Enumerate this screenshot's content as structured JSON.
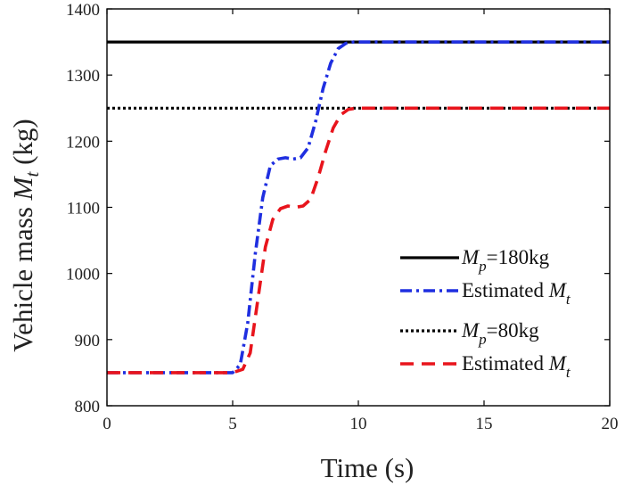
{
  "chart_data": {
    "type": "line",
    "xlabel": "Time (s)",
    "ylabel": "Vehicle mass M_t (kg)",
    "xlim": [
      0,
      20
    ],
    "ylim": [
      800,
      1400
    ],
    "xticks": [
      0,
      5,
      10,
      15,
      20
    ],
    "yticks": [
      800,
      900,
      1000,
      1100,
      1200,
      1300,
      1400
    ],
    "grid": false,
    "legend_position": "bottom-right",
    "series": [
      {
        "name": "M_p=180kg",
        "style": "solid",
        "color": "#000000",
        "x": [
          0,
          20
        ],
        "y": [
          1350,
          1350
        ]
      },
      {
        "name": "Estimated M_t",
        "style": "dash-dot",
        "color": "#1f2fe0",
        "x": [
          0,
          2,
          4,
          5,
          5.3,
          5.6,
          5.9,
          6.2,
          6.5,
          6.8,
          7.1,
          7.4,
          7.7,
          8.0,
          8.3,
          8.6,
          8.9,
          9.2,
          9.5,
          9.8,
          10,
          12,
          15,
          18,
          20
        ],
        "y": [
          850,
          850,
          850,
          850,
          862,
          925,
          1030,
          1115,
          1163,
          1173,
          1175,
          1173,
          1175,
          1190,
          1230,
          1280,
          1318,
          1340,
          1348,
          1350,
          1350,
          1350,
          1350,
          1350,
          1350
        ]
      },
      {
        "name": "M_p=80kg",
        "style": "dotted",
        "color": "#000000",
        "x": [
          0,
          20
        ],
        "y": [
          1250,
          1250
        ]
      },
      {
        "name": "Estimated M_t",
        "style": "dashed",
        "color": "#e8141c",
        "x": [
          0,
          2,
          4,
          5,
          5.4,
          5.7,
          6.0,
          6.3,
          6.6,
          6.9,
          7.2,
          7.5,
          7.8,
          8.1,
          8.4,
          8.7,
          9.0,
          9.3,
          9.6,
          9.9,
          10.2,
          12,
          15,
          18,
          20
        ],
        "y": [
          850,
          850,
          850,
          850,
          855,
          880,
          960,
          1040,
          1082,
          1098,
          1102,
          1100,
          1102,
          1112,
          1145,
          1185,
          1220,
          1240,
          1248,
          1250,
          1250,
          1250,
          1250,
          1250,
          1250
        ]
      }
    ],
    "legend": [
      {
        "main": "M",
        "sub": "p",
        "rest": "=180kg"
      },
      {
        "main": "Estimated ",
        "italic": "M",
        "sub": "t",
        "rest": ""
      },
      {
        "main": "M",
        "sub": "p",
        "rest": "=80kg"
      },
      {
        "main": "Estimated ",
        "italic": "M",
        "sub": "t",
        "rest": ""
      }
    ]
  }
}
